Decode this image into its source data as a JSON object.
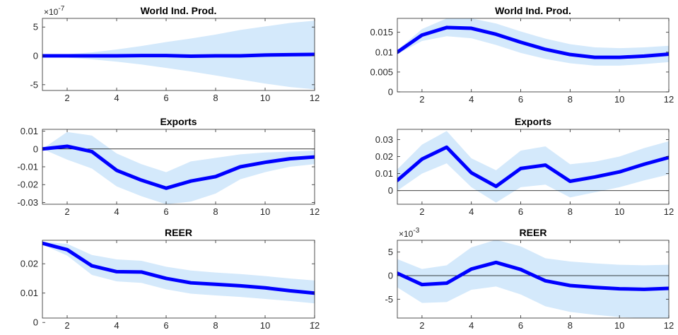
{
  "figure": {
    "line_color": "#0000ff",
    "band_color": "#d4e9fb"
  },
  "chart_data": [
    {
      "type": "area",
      "title": "World Ind. Prod.",
      "exponent_label": "×10",
      "exponent_power": "-7",
      "x": [
        1,
        2,
        3,
        4,
        5,
        6,
        7,
        8,
        9,
        10,
        11,
        12
      ],
      "series": [
        {
          "values": [
            0,
            0,
            0,
            0,
            0.05,
            0.05,
            -0.05,
            0,
            0,
            0.15,
            0.2,
            0.25
          ]
        }
      ],
      "band_lower": [
        -0.15,
        -0.3,
        -0.6,
        -1.0,
        -1.5,
        -2.1,
        -2.7,
        -3.4,
        -4.1,
        -4.8,
        -5.4,
        -5.8
      ],
      "band_upper": [
        0.15,
        0.3,
        0.6,
        1.1,
        1.7,
        2.4,
        3.0,
        3.7,
        4.5,
        5.1,
        5.7,
        6.1
      ],
      "xlim": [
        1,
        12
      ],
      "ylim": [
        -6,
        6.5
      ],
      "xticks": [
        2,
        4,
        6,
        8,
        10,
        12
      ],
      "yticks": [
        -5,
        0,
        5
      ],
      "ytick_labels": [
        "-5",
        "0",
        "5"
      ],
      "zero_line": false
    },
    {
      "type": "area",
      "title": "World Ind. Prod.",
      "x": [
        1,
        2,
        3,
        4,
        5,
        6,
        7,
        8,
        9,
        10,
        11,
        12
      ],
      "series": [
        {
          "values": [
            0.01,
            0.0143,
            0.0162,
            0.016,
            0.0145,
            0.0125,
            0.0107,
            0.0094,
            0.0087,
            0.0087,
            0.009,
            0.0095
          ]
        }
      ],
      "band_lower": [
        0.0095,
        0.0128,
        0.014,
        0.0135,
        0.0118,
        0.0098,
        0.0083,
        0.0072,
        0.0066,
        0.0066,
        0.007,
        0.0075
      ],
      "band_upper": [
        0.0105,
        0.0158,
        0.0185,
        0.0185,
        0.0172,
        0.0152,
        0.0134,
        0.012,
        0.0112,
        0.011,
        0.0112,
        0.0116
      ],
      "xlim": [
        1,
        12
      ],
      "ylim": [
        0,
        0.0185
      ],
      "xticks": [
        2,
        4,
        6,
        8,
        10,
        12
      ],
      "yticks": [
        0,
        0.005,
        0.01,
        0.015
      ],
      "ytick_labels": [
        "0",
        "0.005",
        "0.01",
        "0.015"
      ],
      "zero_line": false
    },
    {
      "type": "area",
      "title": "Exports",
      "x": [
        1,
        2,
        3,
        4,
        5,
        6,
        7,
        8,
        9,
        10,
        11,
        12
      ],
      "series": [
        {
          "values": [
            0.0,
            0.0015,
            -0.0015,
            -0.012,
            -0.0175,
            -0.022,
            -0.018,
            -0.0155,
            -0.01,
            -0.0075,
            -0.0055,
            -0.0045
          ]
        }
      ],
      "band_lower": [
        0.0,
        -0.006,
        -0.011,
        -0.021,
        -0.0265,
        -0.031,
        -0.0295,
        -0.025,
        -0.017,
        -0.013,
        -0.01,
        -0.0085
      ],
      "band_upper": [
        0.0,
        0.0095,
        0.0075,
        -0.0025,
        -0.0085,
        -0.013,
        -0.007,
        -0.005,
        -0.003,
        -0.002,
        -0.0015,
        -0.001
      ],
      "xlim": [
        1,
        12
      ],
      "ylim": [
        -0.031,
        0.011
      ],
      "xticks": [
        2,
        4,
        6,
        8,
        10,
        12
      ],
      "yticks": [
        -0.03,
        -0.02,
        -0.01,
        0,
        0.01
      ],
      "ytick_labels": [
        "-0.03",
        "-0.02",
        "-0.01",
        "0",
        "0.01"
      ],
      "zero_line": true
    },
    {
      "type": "area",
      "title": "Exports",
      "x": [
        1,
        2,
        3,
        4,
        5,
        6,
        7,
        8,
        9,
        10,
        11,
        12
      ],
      "series": [
        {
          "values": [
            0.006,
            0.0185,
            0.0255,
            0.0105,
            0.0025,
            0.013,
            0.015,
            0.0055,
            0.008,
            0.011,
            0.0155,
            0.0195
          ]
        }
      ],
      "band_lower": [
        0.0,
        0.01,
        0.016,
        0.002,
        -0.007,
        0.002,
        0.0035,
        -0.004,
        -0.001,
        0.002,
        0.006,
        0.0095
      ],
      "band_upper": [
        0.0125,
        0.027,
        0.035,
        0.019,
        0.012,
        0.0235,
        0.026,
        0.0155,
        0.017,
        0.02,
        0.025,
        0.029
      ],
      "xlim": [
        1,
        12
      ],
      "ylim": [
        -0.008,
        0.036
      ],
      "xticks": [
        2,
        4,
        6,
        8,
        10,
        12
      ],
      "yticks": [
        0,
        0.01,
        0.02,
        0.03
      ],
      "ytick_labels": [
        "0",
        "0.01",
        "0.02",
        "0.03"
      ],
      "zero_line": true
    },
    {
      "type": "area",
      "title": "REER",
      "x": [
        1,
        2,
        3,
        4,
        5,
        6,
        7,
        8,
        9,
        10,
        11,
        12
      ],
      "series": [
        {
          "values": [
            0.027,
            0.0248,
            0.0193,
            0.0173,
            0.0172,
            0.015,
            0.0135,
            0.013,
            0.0125,
            0.0118,
            0.0108,
            0.01
          ]
        }
      ],
      "band_lower": [
        0.0265,
        0.0228,
        0.0162,
        0.014,
        0.0135,
        0.0113,
        0.0098,
        0.0092,
        0.0087,
        0.008,
        0.0073,
        0.0065
      ],
      "band_upper": [
        0.0275,
        0.0268,
        0.023,
        0.0215,
        0.021,
        0.019,
        0.0177,
        0.017,
        0.0165,
        0.0158,
        0.015,
        0.0143
      ],
      "xlim": [
        1,
        12
      ],
      "ylim": [
        0.0015,
        0.028
      ],
      "xticks": [
        2,
        4,
        6,
        8,
        10,
        12
      ],
      "yticks": [
        0,
        0.01,
        0.02
      ],
      "ytick_labels": [
        "0",
        "0.01",
        "0.02"
      ],
      "zero_line": false
    },
    {
      "type": "area",
      "title": "REER",
      "exponent_label": "×10",
      "exponent_power": "-3",
      "x": [
        1,
        2,
        3,
        4,
        5,
        6,
        7,
        8,
        9,
        10,
        11,
        12
      ],
      "series": [
        {
          "values": [
            0.5,
            -1.9,
            -1.6,
            1.4,
            2.8,
            1.3,
            -1.1,
            -2.1,
            -2.5,
            -2.8,
            -2.9,
            -2.7
          ]
        }
      ],
      "band_lower": [
        -2.5,
        -5.8,
        -5.6,
        -3.0,
        -2.3,
        -4.0,
        -6.5,
        -7.7,
        -8.3,
        -8.8,
        -9.0,
        -9.2
      ],
      "band_upper": [
        3.5,
        1.4,
        2.2,
        6.0,
        7.6,
        6.2,
        3.7,
        3.0,
        2.6,
        2.3,
        2.2,
        2.3
      ],
      "xlim": [
        1,
        12
      ],
      "ylim": [
        -9.0,
        7.5
      ],
      "xticks": [
        2,
        4,
        6,
        8,
        10,
        12
      ],
      "yticks": [
        -5,
        0,
        5
      ],
      "ytick_labels": [
        "-5",
        "0",
        "5"
      ],
      "zero_line": true
    }
  ]
}
